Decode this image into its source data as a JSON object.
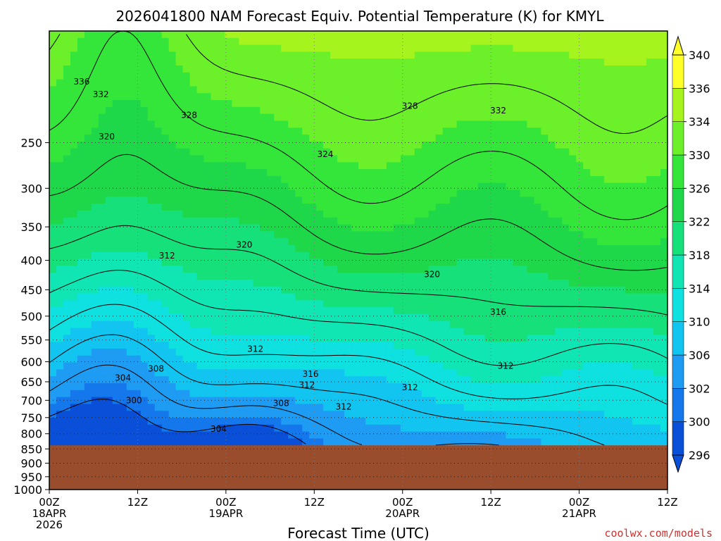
{
  "chart_data": {
    "type": "heatmap",
    "title": "2026041800 NAM Forecast Equiv. Potential Temperature (K) for KMYL",
    "xlabel": "Forecast Time (UTC)",
    "ylabel": "",
    "y_scale": "log-pressure",
    "ylim": [
      1000,
      160
    ],
    "y_ticks": [
      250,
      300,
      350,
      400,
      450,
      500,
      550,
      600,
      650,
      700,
      750,
      800,
      850,
      900,
      950,
      1000
    ],
    "x_ticks": [
      {
        "hour": 0,
        "line1": "00Z",
        "line2": "18APR",
        "line3": "2026"
      },
      {
        "hour": 12,
        "line1": "12Z",
        "line2": "",
        "line3": ""
      },
      {
        "hour": 24,
        "line1": "00Z",
        "line2": "19APR",
        "line3": ""
      },
      {
        "hour": 36,
        "line1": "12Z",
        "line2": "",
        "line3": ""
      },
      {
        "hour": 48,
        "line1": "00Z",
        "line2": "20APR",
        "line3": ""
      },
      {
        "hour": 60,
        "line1": "12Z",
        "line2": "",
        "line3": ""
      },
      {
        "hour": 72,
        "line1": "00Z",
        "line2": "21APR",
        "line3": ""
      },
      {
        "hour": 84,
        "line1": "12Z",
        "line2": "",
        "line3": ""
      }
    ],
    "grid": true,
    "terrain_below_hpa": 838,
    "terrain_color": "#9a4d2c",
    "colorbar": {
      "levels": [
        296,
        300,
        302,
        306,
        310,
        314,
        318,
        322,
        326,
        330,
        334,
        336,
        340
      ],
      "colors": [
        "#0a4fd8",
        "#1477ec",
        "#1e9bf2",
        "#12c4f0",
        "#0fe0e0",
        "#0fe6b4",
        "#16e07a",
        "#1ed84a",
        "#34e63a",
        "#6cf02a",
        "#a6f41e",
        "#ffff2a"
      ]
    },
    "contour_labels": [
      {
        "text": "336",
        "hour": 4.4,
        "hpa": 196
      },
      {
        "text": "332",
        "hour": 7.0,
        "hpa": 206
      },
      {
        "text": "328",
        "hour": 19.0,
        "hpa": 224
      },
      {
        "text": "320",
        "hour": 7.8,
        "hpa": 244
      },
      {
        "text": "328",
        "hour": 49.0,
        "hpa": 216
      },
      {
        "text": "332",
        "hour": 61.0,
        "hpa": 220
      },
      {
        "text": "324",
        "hour": 37.5,
        "hpa": 262
      },
      {
        "text": "320",
        "hour": 26.5,
        "hpa": 376
      },
      {
        "text": "312",
        "hour": 16.0,
        "hpa": 393
      },
      {
        "text": "320",
        "hour": 52.0,
        "hpa": 423
      },
      {
        "text": "316",
        "hour": 61.0,
        "hpa": 492
      },
      {
        "text": "312",
        "hour": 28.0,
        "hpa": 570
      },
      {
        "text": "308",
        "hour": 14.5,
        "hpa": 617
      },
      {
        "text": "316",
        "hour": 35.5,
        "hpa": 630
      },
      {
        "text": "304",
        "hour": 10.0,
        "hpa": 640
      },
      {
        "text": "312",
        "hour": 35.0,
        "hpa": 658
      },
      {
        "text": "312",
        "hour": 49.0,
        "hpa": 665
      },
      {
        "text": "312",
        "hour": 62.0,
        "hpa": 610
      },
      {
        "text": "300",
        "hour": 11.5,
        "hpa": 700
      },
      {
        "text": "308",
        "hour": 31.5,
        "hpa": 708
      },
      {
        "text": "312",
        "hour": 40.0,
        "hpa": 718
      },
      {
        "text": "304",
        "hour": 23.0,
        "hpa": 785
      }
    ]
  },
  "credit": "coolwx.com/models"
}
